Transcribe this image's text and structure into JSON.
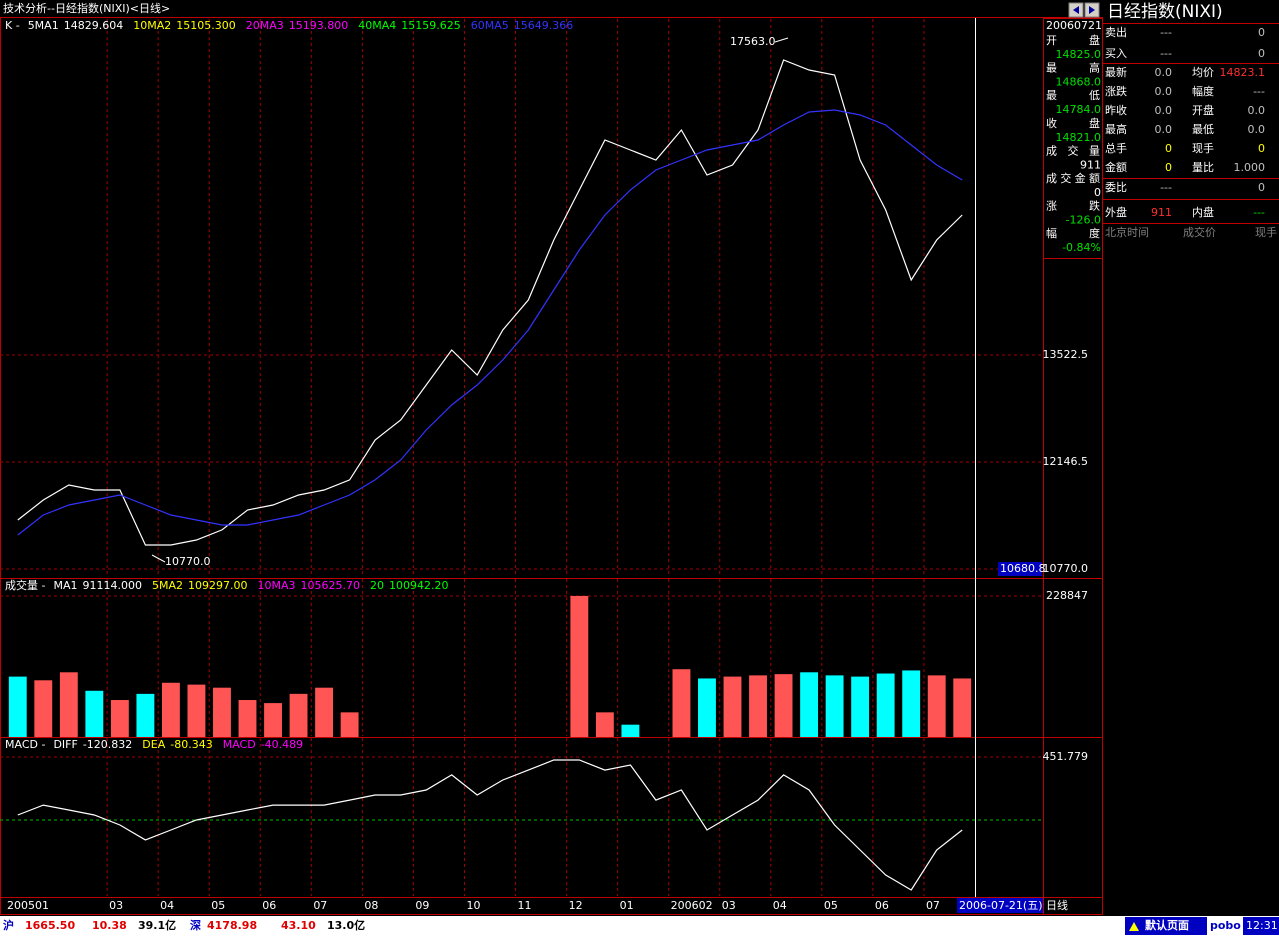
{
  "window_title": "技术分析--日经指数(NIXI)<日线>",
  "chart_data": [
    {
      "type": "line",
      "title": "K -",
      "categories": [
        "200501",
        null,
        null,
        null,
        "03",
        null,
        "04",
        null,
        "05",
        null,
        "06",
        null,
        "07",
        null,
        "08",
        null,
        "09",
        null,
        "10",
        null,
        "11",
        null,
        "12",
        null,
        "01",
        null,
        "200602",
        null,
        "03",
        null,
        "04",
        null,
        "05",
        null,
        "06",
        null,
        "07",
        null
      ],
      "series": [
        {
          "name": "5MA1",
          "label": "14829.604",
          "color": "#ffffff",
          "values": [
            11400,
            11657,
            11850,
            11786,
            11786,
            11078,
            11078,
            11143,
            11272,
            11529,
            11593,
            11722,
            11786,
            11915,
            12429,
            12686,
            13136,
            13586,
            13265,
            13844,
            14229,
            15001,
            15644,
            16287,
            16158,
            16030,
            16416,
            15837,
            15965,
            16416,
            17316,
            17187,
            17123,
            16030,
            15387,
            14487,
            15001,
            15322
          ]
        },
        {
          "name": "10MA2",
          "label": "15105.300",
          "color": "#ffff00"
        },
        {
          "name": "20MA3",
          "label": "15193.800",
          "color": "#ff00ff"
        },
        {
          "name": "40MA4",
          "label": "15159.625",
          "color": "#00ff00"
        },
        {
          "name": "60MA5",
          "label": "15649.366",
          "color": "#3333ff",
          "values": [
            11207,
            11464,
            11593,
            11657,
            11722,
            11593,
            11464,
            11400,
            11336,
            11336,
            11400,
            11464,
            11593,
            11722,
            11915,
            12172,
            12558,
            12879,
            13136,
            13458,
            13844,
            14358,
            14872,
            15322,
            15644,
            15901,
            16030,
            16158,
            16223,
            16287,
            16480,
            16647,
            16673,
            16608,
            16480,
            16223,
            15965,
            15772
          ]
        }
      ],
      "ylim": [
        10654,
        17856
      ],
      "yticks": [
        {
          "value": 10770,
          "label": "10770.0"
        },
        12146.5,
        13522.5
      ],
      "grid": true,
      "annotations": [
        "17563.0",
        "10770.0",
        "10680.8"
      ]
    },
    {
      "type": "bar",
      "title": "成交量 -",
      "values": [
        98000,
        92000,
        105000,
        75000,
        60000,
        70000,
        88000,
        85000,
        80000,
        60000,
        55000,
        70000,
        80000,
        40000,
        0,
        0,
        0,
        0,
        0,
        0,
        0,
        0,
        228847,
        40000,
        20000,
        0,
        110000,
        95000,
        98000,
        100000,
        102000,
        105000,
        100000,
        98000,
        103000,
        108000,
        100000,
        95000
      ],
      "up_color": "#ff5555",
      "down_color": "#00ffff",
      "series": [
        {
          "name": "MA1",
          "label": "91114.000",
          "color": "#ffffff"
        },
        {
          "name": "5MA2",
          "label": "109297.00",
          "color": "#ffff00"
        },
        {
          "name": "10MA3",
          "label": "105625.70",
          "color": "#ff00ff"
        },
        {
          "name": "20",
          "label": "100942.20",
          "color": "#00ff00"
        }
      ],
      "ylim": [
        0,
        258000
      ],
      "yticks": [
        228847
      ],
      "grid": true
    },
    {
      "type": "line",
      "title": "MACD -",
      "series": [
        {
          "name": "DIFF",
          "label": "-120.832",
          "color": "#ffffff",
          "values": [
            36,
            107,
            72,
            36,
            -36,
            -143,
            -72,
            0,
            36,
            72,
            107,
            107,
            107,
            143,
            179,
            179,
            215,
            323,
            179,
            287,
            358,
            430,
            430,
            358,
            394,
            143,
            215,
            -72,
            36,
            143,
            323,
            215,
            -36,
            -215,
            -394,
            -502,
            -215,
            -72
          ]
        },
        {
          "name": "DEA",
          "label": "-80.343",
          "color": "#ffff00"
        },
        {
          "name": "MACD",
          "label": "-40.489",
          "color": "#ff00ff"
        }
      ],
      "ylim": [
        -552,
        595
      ],
      "yticks": [
        451.779
      ],
      "grid": true
    }
  ],
  "cursor_date": "2006-07-21(五)",
  "period": "日线",
  "info_box": {
    "date": "20060721",
    "rows": [
      [
        "开盘",
        "14825.0"
      ],
      [
        "最高",
        "14868.0"
      ],
      [
        "最低",
        "14784.0"
      ],
      [
        "收盘",
        "14821.0"
      ],
      [
        "成交量",
        "911"
      ],
      [
        "成交金额",
        "0"
      ],
      [
        "涨跌",
        "-126.0"
      ],
      [
        "幅度",
        "-0.84%"
      ]
    ]
  },
  "quote": {
    "title": "日经指数(NIXI)",
    "rows": [
      [
        "卖出",
        "---",
        null,
        "0"
      ],
      [
        "买入",
        "---",
        null,
        "0"
      ],
      [
        "最新",
        "0.0",
        "均价",
        "14823.1"
      ],
      [
        "涨跌",
        "0.0",
        "幅度",
        "---"
      ],
      [
        "昨收",
        "0.0",
        "开盘",
        "0.0"
      ],
      [
        "最高",
        "0.0",
        "最低",
        "0.0"
      ],
      [
        "总手",
        "0",
        "现手",
        "0"
      ],
      [
        "金额",
        "0",
        "量比",
        "1.000"
      ],
      [
        "委比",
        "---",
        null,
        "0"
      ],
      [
        "外盘",
        "911",
        "内盘",
        "---"
      ]
    ],
    "ticks_header": [
      "北京时间",
      "成交价",
      "现手"
    ]
  },
  "status": {
    "items": [
      "沪",
      "1665.50",
      "10.38",
      "39.1亿",
      "深",
      "4178.98",
      "43.10",
      "13.0亿"
    ],
    "page": "默认页面",
    "brand": "pobo",
    "time": "12:31"
  }
}
